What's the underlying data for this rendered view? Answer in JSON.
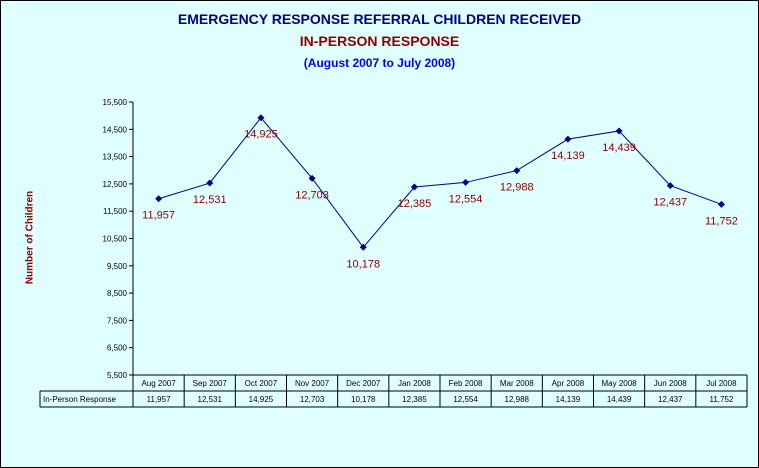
{
  "title": "EMERGENCY RESPONSE REFERRAL CHILDREN RECEIVED",
  "subtitle": "IN-PERSON RESPONSE",
  "period": "(August 2007 to July 2008)",
  "colors": {
    "background": "#e0ffff",
    "line": "#00008b",
    "labels": "#8b0000",
    "title": "#000080",
    "period": "#0000ff"
  },
  "chart_data": {
    "type": "line",
    "title": "EMERGENCY RESPONSE REFERRAL CHILDREN RECEIVED",
    "subtitle": "IN-PERSON RESPONSE",
    "ylabel": "Number of Children",
    "xlabel": "",
    "ylim": [
      5500,
      15500
    ],
    "yticks": [
      "5,500",
      "6,500",
      "7,500",
      "8,500",
      "9,500",
      "10,500",
      "11,500",
      "12,500",
      "13,500",
      "14,500",
      "15,500"
    ],
    "ytick_values": [
      5500,
      6500,
      7500,
      8500,
      9500,
      10500,
      11500,
      12500,
      13500,
      14500,
      15500
    ],
    "categories": [
      "Aug 2007",
      "Sep 2007",
      "Oct 2007",
      "Nov 2007",
      "Dec 2007",
      "Jan 2008",
      "Feb 2008",
      "Mar 2008",
      "Apr 2008",
      "May 2008",
      "Jun 2008",
      "Jul 2008"
    ],
    "series": [
      {
        "name": "In-Person Response",
        "values": [
          11957,
          12531,
          14925,
          12703,
          10178,
          12385,
          12554,
          12988,
          14139,
          14439,
          12437,
          11752
        ],
        "labels": [
          "11,957",
          "12,531",
          "14,925",
          "12,703",
          "10,178",
          "12,385",
          "12,554",
          "12,988",
          "14,139",
          "14,439",
          "12,437",
          "11,752"
        ]
      }
    ],
    "grid": false,
    "legend": "data table below x-axis"
  }
}
